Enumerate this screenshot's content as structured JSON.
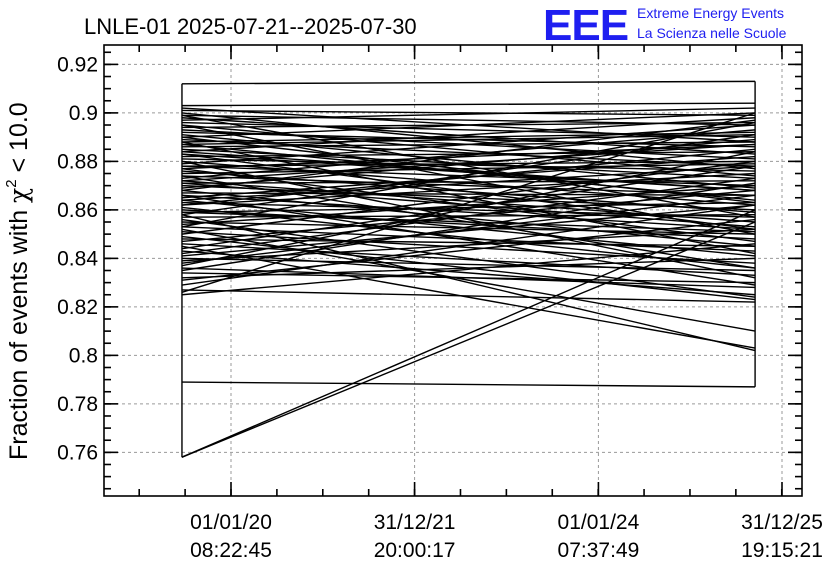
{
  "header": {
    "title": "LNLE-01 2025-07-21--2025-07-30",
    "logo_mark": "EEE",
    "logo_line1": "Extreme Energy Events",
    "logo_line2": "La Scienza nelle Scuole",
    "logo_color": "#1e1ef0"
  },
  "chart_data": {
    "type": "line",
    "ylabel_prefix": "Fraction of events with ",
    "ylabel_symbol": "χ",
    "ylabel_sup": "2",
    "ylabel_suffix": " < 10.0",
    "ylim": [
      0.742,
      0.928
    ],
    "yticks": [
      {
        "value": 0.76,
        "label": "0.76"
      },
      {
        "value": 0.78,
        "label": "0.78"
      },
      {
        "value": 0.8,
        "label": "0.8"
      },
      {
        "value": 0.82,
        "label": "0.82"
      },
      {
        "value": 0.84,
        "label": "0.84"
      },
      {
        "value": 0.86,
        "label": "0.86"
      },
      {
        "value": 0.88,
        "label": "0.88"
      },
      {
        "value": 0.9,
        "label": "0.9"
      },
      {
        "value": 0.92,
        "label": "0.92"
      }
    ],
    "x_tick_dates": [
      "2020-01-01",
      "2021-12-31",
      "2024-01-01",
      "2025-12-31"
    ],
    "xticks": [
      {
        "date": "01/01/20",
        "time": "08:22:45"
      },
      {
        "date": "31/12/21",
        "time": "20:00:17"
      },
      {
        "date": "01/01/24",
        "time": "07:37:49"
      },
      {
        "date": "31/12/25",
        "time": "19:15:21"
      }
    ],
    "grid": true,
    "x_endpoints": [
      "2019-06-20",
      "2025-09-15"
    ],
    "segment_pairs": [
      [
        0.789,
        0.787
      ],
      [
        0.758,
        0.86
      ],
      [
        0.758,
        0.855
      ],
      [
        0.825,
        0.846
      ],
      [
        0.827,
        0.822
      ],
      [
        0.829,
        0.862
      ],
      [
        0.832,
        0.84
      ],
      [
        0.834,
        0.83
      ],
      [
        0.836,
        0.828
      ],
      [
        0.838,
        0.866
      ],
      [
        0.839,
        0.852
      ],
      [
        0.84,
        0.835
      ],
      [
        0.842,
        0.873
      ],
      [
        0.843,
        0.825
      ],
      [
        0.845,
        0.803
      ],
      [
        0.846,
        0.833
      ],
      [
        0.848,
        0.845
      ],
      [
        0.849,
        0.823
      ],
      [
        0.85,
        0.88
      ],
      [
        0.851,
        0.838
      ],
      [
        0.852,
        0.81
      ],
      [
        0.853,
        0.843
      ],
      [
        0.854,
        0.87
      ],
      [
        0.855,
        0.85
      ],
      [
        0.856,
        0.824
      ],
      [
        0.857,
        0.858
      ],
      [
        0.858,
        0.802
      ],
      [
        0.859,
        0.863
      ],
      [
        0.86,
        0.848
      ],
      [
        0.861,
        0.836
      ],
      [
        0.862,
        0.875
      ],
      [
        0.863,
        0.857
      ],
      [
        0.864,
        0.841
      ],
      [
        0.865,
        0.882
      ],
      [
        0.866,
        0.852
      ],
      [
        0.867,
        0.866
      ],
      [
        0.868,
        0.845
      ],
      [
        0.869,
        0.889
      ],
      [
        0.87,
        0.86
      ],
      [
        0.871,
        0.872
      ],
      [
        0.872,
        0.855
      ],
      [
        0.873,
        0.893
      ],
      [
        0.874,
        0.866
      ],
      [
        0.875,
        0.879
      ],
      [
        0.876,
        0.859
      ],
      [
        0.877,
        0.887
      ],
      [
        0.878,
        0.87
      ],
      [
        0.879,
        0.895
      ],
      [
        0.88,
        0.862
      ],
      [
        0.881,
        0.876
      ],
      [
        0.882,
        0.884
      ],
      [
        0.883,
        0.868
      ],
      [
        0.884,
        0.898
      ],
      [
        0.885,
        0.873
      ],
      [
        0.886,
        0.888
      ],
      [
        0.887,
        0.864
      ],
      [
        0.888,
        0.892
      ],
      [
        0.889,
        0.878
      ],
      [
        0.89,
        0.9
      ],
      [
        0.891,
        0.869
      ],
      [
        0.892,
        0.886
      ],
      [
        0.893,
        0.881
      ],
      [
        0.894,
        0.896
      ],
      [
        0.895,
        0.874
      ],
      [
        0.896,
        0.89
      ],
      [
        0.897,
        0.902
      ],
      [
        0.898,
        0.883
      ],
      [
        0.899,
        0.895
      ],
      [
        0.9,
        0.877
      ],
      [
        0.901,
        0.899
      ],
      [
        0.902,
        0.888
      ],
      [
        0.903,
        0.904
      ],
      [
        0.888,
        0.842
      ],
      [
        0.895,
        0.85
      ],
      [
        0.899,
        0.857
      ],
      [
        0.88,
        0.832
      ],
      [
        0.877,
        0.847
      ],
      [
        0.871,
        0.853
      ],
      [
        0.866,
        0.829
      ],
      [
        0.862,
        0.885
      ],
      [
        0.858,
        0.891
      ],
      [
        0.853,
        0.896
      ],
      [
        0.847,
        0.868
      ],
      [
        0.844,
        0.878
      ],
      [
        0.841,
        0.862
      ],
      [
        0.837,
        0.884
      ],
      [
        0.835,
        0.871
      ],
      [
        0.831,
        0.856
      ],
      [
        0.912,
        0.913
      ],
      [
        0.826,
        0.9
      ],
      [
        0.868,
        0.897
      ],
      [
        0.874,
        0.836
      ],
      [
        0.883,
        0.852
      ],
      [
        0.89,
        0.863
      ],
      [
        0.864,
        0.878
      ],
      [
        0.859,
        0.851
      ],
      [
        0.872,
        0.887
      ],
      [
        0.878,
        0.88
      ],
      [
        0.884,
        0.868
      ],
      [
        0.887,
        0.891
      ]
    ]
  }
}
